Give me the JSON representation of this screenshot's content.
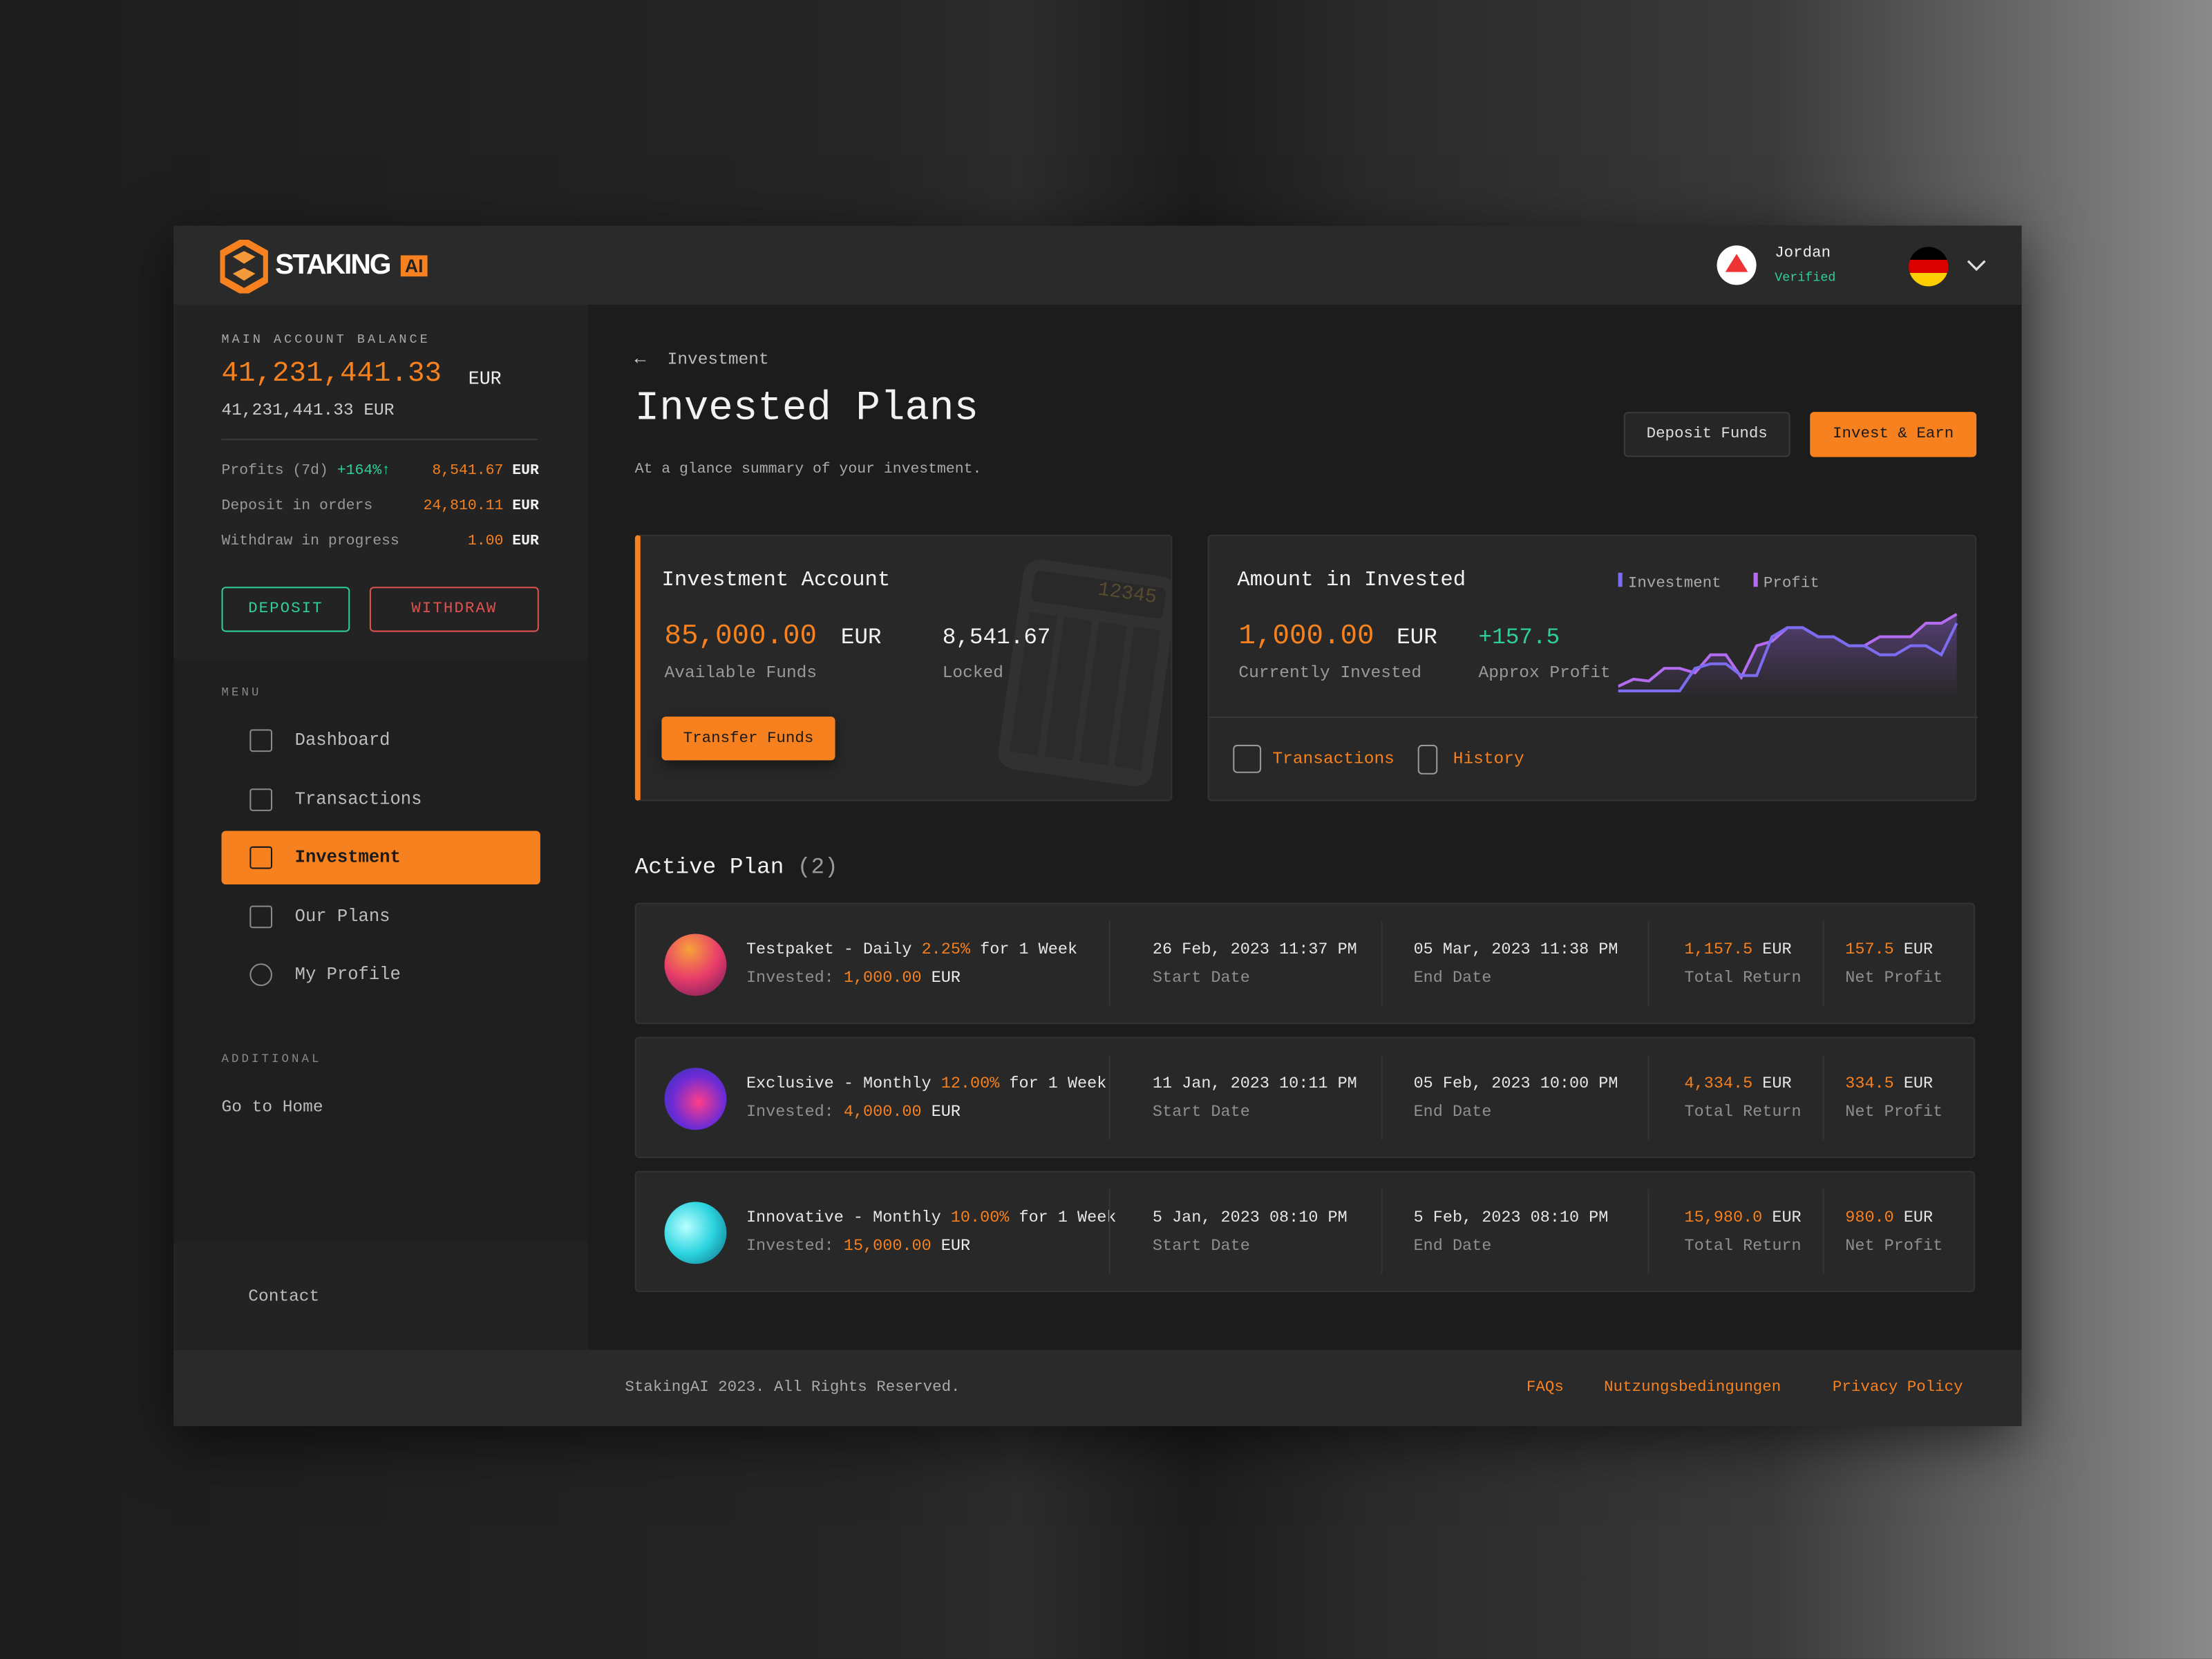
{
  "header": {
    "brand": "STAKING",
    "brand_badge": "AI",
    "user_name": "Jordan",
    "user_status": "Verified",
    "language": "German"
  },
  "sidebar": {
    "balance_label": "MAIN ACCOUNT BALANCE",
    "balance_value": "41,231,441.33",
    "balance_currency": "EUR",
    "balance_secondary": "41,231,441.33 EUR",
    "stats": [
      {
        "label": "Profits (7d)",
        "change": "+164%",
        "value": "8,541.67",
        "currency": "EUR"
      },
      {
        "label": "Deposit in orders",
        "value": "24,810.11",
        "currency": "EUR"
      },
      {
        "label": "Withdraw in progress",
        "value": "1.00",
        "currency": "EUR"
      }
    ],
    "deposit_label": "DEPOSIT",
    "withdraw_label": "WITHDRAW",
    "menu_heading": "MENU",
    "menu": [
      {
        "label": "Dashboard",
        "icon": "dashboard-icon"
      },
      {
        "label": "Transactions",
        "icon": "transactions-icon"
      },
      {
        "label": "Investment",
        "icon": "chart-icon",
        "active": true
      },
      {
        "label": "Our Plans",
        "icon": "plans-icon"
      },
      {
        "label": "My Profile",
        "icon": "profile-icon"
      }
    ],
    "additional_heading": "ADDITIONAL",
    "go_home": "Go to Home",
    "contact": "Contact"
  },
  "main": {
    "breadcrumb": "Investment",
    "title": "Invested Plans",
    "subtitle": "At a glance summary of your investment.",
    "deposit_funds": "Deposit Funds",
    "invest_earn": "Invest & Earn",
    "account_card": {
      "title": "Investment Account",
      "available_value": "85,000.00",
      "available_currency": "EUR",
      "available_label": "Available Funds",
      "locked_value": "8,541.67",
      "locked_label": "Locked",
      "transfer": "Transfer Funds",
      "calc_display": "12345"
    },
    "amount_card": {
      "title": "Amount in Invested",
      "invested_value": "1,000.00",
      "invested_currency": "EUR",
      "invested_label": "Currently Invested",
      "profit_value": "+157.5",
      "profit_label": "Approx Profit",
      "transactions": "Transactions",
      "history": "History"
    },
    "active_title": "Active Plan",
    "active_count": "(2)",
    "plans": [
      {
        "name": "Testpaket - Daily",
        "rate": "2.25%",
        "duration": "for 1 Week",
        "invested_label": "Invested:",
        "invested": "1,000.00",
        "currency": "EUR",
        "start": "26 Feb, 2023 11:37 PM",
        "start_label": "Start Date",
        "end": "05 Mar, 2023 11:38 PM",
        "end_label": "End Date",
        "total": "1,157.5",
        "total_label": "Total Return",
        "net": "157.5",
        "net_label": "Net Profit"
      },
      {
        "name": "Exclusive - Monthly",
        "rate": "12.00%",
        "duration": "for 1 Week",
        "invested_label": "Invested:",
        "invested": "4,000.00",
        "currency": "EUR",
        "start": "11 Jan, 2023 10:11 PM",
        "start_label": "Start Date",
        "end": "05 Feb, 2023 10:00 PM",
        "end_label": "End Date",
        "total": "4,334.5",
        "total_label": "Total Return",
        "net": "334.5",
        "net_label": "Net Profit"
      },
      {
        "name": "Innovative - Monthly",
        "rate": "10.00%",
        "duration": "for 1 Week",
        "invested_label": "Invested:",
        "invested": "15,000.00",
        "currency": "EUR",
        "start": "5 Jan, 2023 08:10 PM",
        "start_label": "Start Date",
        "end": "5 Feb, 2023 08:10 PM",
        "end_label": "End Date",
        "total": "15,980.0",
        "total_label": "Total Return",
        "net": "980.0",
        "net_label": "Net Profit"
      }
    ]
  },
  "chart_data": {
    "type": "line",
    "grid": false,
    "legend": "top",
    "series": [
      {
        "name": "Investment",
        "color": "#7b6cf0",
        "values": [
          5,
          5,
          5,
          5,
          5,
          30,
          35,
          35,
          22,
          22,
          65,
          75,
          75,
          65,
          65,
          55,
          55,
          45,
          45,
          55,
          55,
          45,
          80
        ]
      },
      {
        "name": "Profit",
        "color": "#b36cf0",
        "values": [
          10,
          18,
          16,
          30,
          30,
          25,
          45,
          45,
          20,
          55,
          60,
          75,
          75,
          65,
          65,
          55,
          55,
          65,
          65,
          65,
          80,
          80,
          90
        ]
      }
    ]
  },
  "footer": {
    "copyright": "StakingAI 2023. All Rights Reserved.",
    "links": [
      "FAQs",
      "Nutzungsbedingungen",
      "Privacy Policy"
    ]
  },
  "colors": {
    "accent": "#f7811e",
    "positive": "#2fcf9b",
    "negative": "#e0524f"
  }
}
